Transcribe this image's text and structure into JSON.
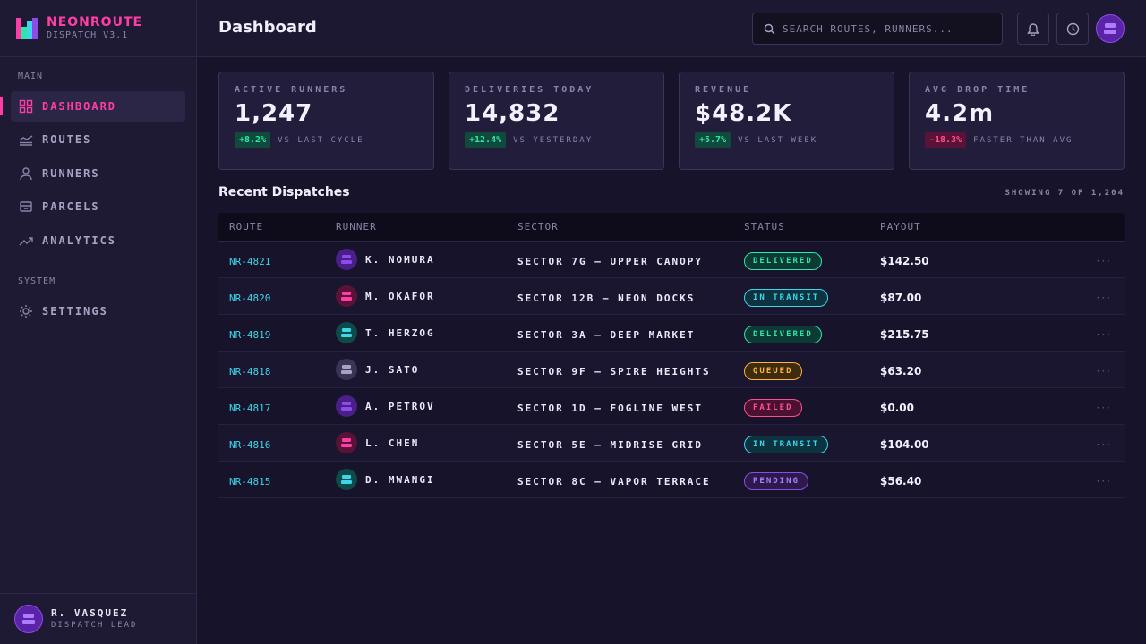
{
  "brand": {
    "title": "NEONROUTE",
    "subtitle": "DISPATCH V3.1"
  },
  "sidebar": {
    "sections": [
      "MAIN",
      "SYSTEM"
    ],
    "items": [
      {
        "label": "DASHBOARD",
        "icon": "grid-icon",
        "active": true
      },
      {
        "label": "ROUTES",
        "icon": "routes-icon",
        "active": false
      },
      {
        "label": "RUNNERS",
        "icon": "user-icon",
        "active": false
      },
      {
        "label": "PARCELS",
        "icon": "parcel-icon",
        "active": false
      },
      {
        "label": "ANALYTICS",
        "icon": "analytics-icon",
        "active": false
      },
      {
        "label": "SETTINGS",
        "icon": "gear-icon",
        "active": false
      }
    ]
  },
  "user": {
    "name": "R. VASQUEZ",
    "role": "DISPATCH LEAD"
  },
  "header": {
    "title": "Dashboard",
    "search_placeholder": "SEARCH ROUTES, RUNNERS..."
  },
  "stats": [
    {
      "label": "ACTIVE RUNNERS",
      "value": "1,247",
      "delta": "+8.2%",
      "trend": "up",
      "note": "VS LAST CYCLE"
    },
    {
      "label": "DELIVERIES TODAY",
      "value": "14,832",
      "delta": "+12.4%",
      "trend": "up",
      "note": "VS YESTERDAY"
    },
    {
      "label": "REVENUE",
      "value": "$48.2K",
      "delta": "+5.7%",
      "trend": "up",
      "note": "VS LAST WEEK"
    },
    {
      "label": "AVG DROP TIME",
      "value": "4.2m",
      "delta": "-18.3%",
      "trend": "down",
      "note": "FASTER THAN AVG"
    }
  ],
  "dispatches": {
    "title": "Recent Dispatches",
    "showing": "SHOWING 7 OF 1,204",
    "columns": [
      "ROUTE",
      "RUNNER",
      "SECTOR",
      "STATUS",
      "PAYOUT"
    ],
    "more_label": "···",
    "rows": [
      {
        "route": "NR-4821",
        "runner": "K. NOMURA",
        "sector": "SECTOR 7G — UPPER CANOPY",
        "status": "DELIVERED",
        "payout": "$142.50",
        "avatar_color": "#4a1f8a",
        "avatar_fg": "#8d4ce8"
      },
      {
        "route": "NR-4820",
        "runner": "M. OKAFOR",
        "sector": "SECTOR 12B — NEON DOCKS",
        "status": "IN TRANSIT",
        "payout": "$87.00",
        "avatar_color": "#5a1236",
        "avatar_fg": "#ff3da6"
      },
      {
        "route": "NR-4819",
        "runner": "T. HERZOG",
        "sector": "SECTOR 3A — DEEP MARKET",
        "status": "DELIVERED",
        "payout": "$215.75",
        "avatar_color": "#0d4a48",
        "avatar_fg": "#3ed6e8"
      },
      {
        "route": "NR-4818",
        "runner": "J. SATO",
        "sector": "SECTOR 9F — SPIRE HEIGHTS",
        "status": "QUEUED",
        "payout": "$63.20",
        "avatar_color": "#3a3456",
        "avatar_fg": "#a8a2c4"
      },
      {
        "route": "NR-4817",
        "runner": "A. PETROV",
        "sector": "SECTOR 1D — FOGLINE WEST",
        "status": "FAILED",
        "payout": "$0.00",
        "avatar_color": "#4a1f8a",
        "avatar_fg": "#8d4ce8"
      },
      {
        "route": "NR-4816",
        "runner": "L. CHEN",
        "sector": "SECTOR 5E — MIDRISE GRID",
        "status": "IN TRANSIT",
        "payout": "$104.00",
        "avatar_color": "#5a1236",
        "avatar_fg": "#ff3da6"
      },
      {
        "route": "NR-4815",
        "runner": "D. MWANGI",
        "sector": "SECTOR 8C — VAPOR TERRACE",
        "status": "PENDING",
        "payout": "$56.40",
        "avatar_color": "#0d4a48",
        "avatar_fg": "#3ed6e8"
      }
    ]
  },
  "colors": {
    "accent_pink": "#ff3da6",
    "accent_cyan": "#3ed6e8",
    "accent_green": "#2ee6a6",
    "bg": "#16132a"
  }
}
